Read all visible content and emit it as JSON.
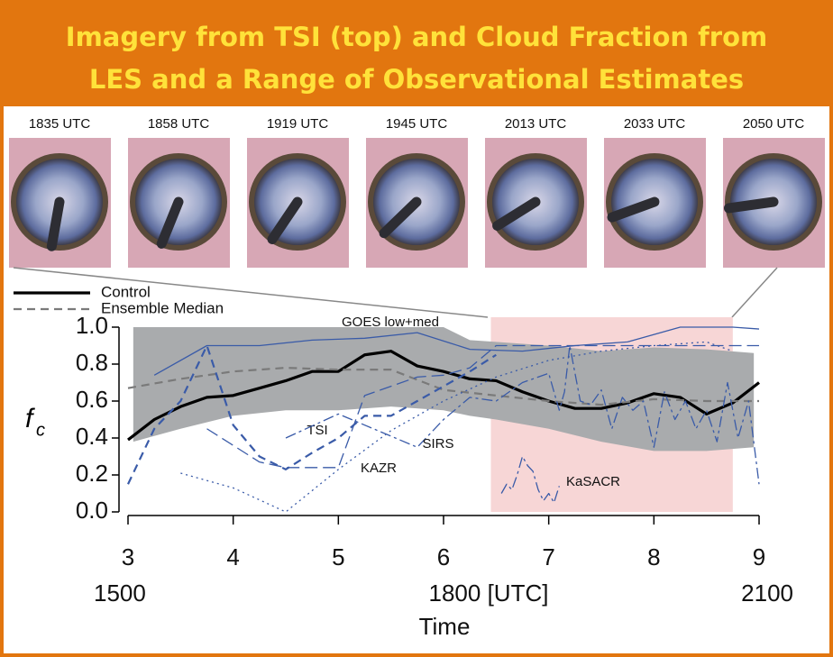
{
  "header": {
    "title_lines": [
      "Imagery from TSI (top) and Cloud Fraction from",
      "LES and a Range of Observational Estimates"
    ]
  },
  "images": {
    "labels": [
      "1835 UTC",
      "1858 UTC",
      "1919 UTC",
      "1945 UTC",
      "2013 UTC",
      "2033 UTC",
      "2050 UTC"
    ]
  },
  "chart_data": {
    "type": "line",
    "xlabel": "Time",
    "ylabel": {
      "text": "f",
      "subscript": "c"
    },
    "xlim": [
      3,
      9
    ],
    "ylim": [
      0,
      1
    ],
    "xticks": [
      3,
      4,
      5,
      6,
      7,
      8,
      9
    ],
    "xticks2": [
      {
        "value": 3,
        "label": "1500"
      },
      {
        "value": 6,
        "label": "1800 [UTC]"
      },
      {
        "value": 9,
        "label": "2100"
      }
    ],
    "yticks": [
      {
        "value": 0,
        "label": "0.0"
      },
      {
        "value": 0.2,
        "label": "0.2"
      },
      {
        "value": 0.4,
        "label": "0.4"
      },
      {
        "value": 0.6,
        "label": "0.6"
      },
      {
        "value": 0.8,
        "label": "0.8"
      },
      {
        "value": 1,
        "label": "1.0"
      }
    ],
    "shaded_region": [
      6.45,
      8.75
    ],
    "shaded_color": "#f7d6d6",
    "band": {
      "color": "#a9abad",
      "x": [
        3.05,
        3.5,
        4,
        4.5,
        5,
        5.5,
        6,
        6.25,
        6.5,
        7,
        7.5,
        8,
        8.5,
        8.95
      ],
      "upper": [
        1.0,
        1.0,
        1.0,
        1.0,
        1.0,
        1.0,
        1.0,
        0.93,
        0.92,
        0.9,
        0.87,
        0.89,
        0.88,
        0.86
      ],
      "lower": [
        0.38,
        0.45,
        0.52,
        0.55,
        0.55,
        0.57,
        0.55,
        0.52,
        0.5,
        0.45,
        0.38,
        0.33,
        0.33,
        0.35
      ]
    },
    "series": [
      {
        "name": "Control",
        "color": "#000000",
        "style": "thick",
        "legend": true,
        "x": [
          3,
          3.25,
          3.5,
          3.75,
          4,
          4.25,
          4.5,
          4.75,
          5,
          5.25,
          5.5,
          5.75,
          6,
          6.25,
          6.5,
          6.75,
          7,
          7.25,
          7.5,
          7.75,
          8,
          8.25,
          8.5,
          8.75,
          9
        ],
        "values": [
          0.39,
          0.5,
          0.57,
          0.62,
          0.63,
          0.67,
          0.71,
          0.76,
          0.76,
          0.85,
          0.87,
          0.79,
          0.76,
          0.72,
          0.71,
          0.65,
          0.6,
          0.56,
          0.56,
          0.59,
          0.64,
          0.62,
          0.53,
          0.59,
          0.7
        ]
      },
      {
        "name": "Ensemble Median",
        "color": "#7a7a7a",
        "style": "dashed",
        "legend": true,
        "x": [
          3,
          3.5,
          4,
          4.5,
          5,
          5.5,
          6,
          6.5,
          7,
          7.5,
          8,
          8.5,
          9
        ],
        "values": [
          0.67,
          0.72,
          0.76,
          0.78,
          0.77,
          0.77,
          0.66,
          0.63,
          0.6,
          0.58,
          0.61,
          0.6,
          0.6
        ]
      },
      {
        "name": "GOES low+med",
        "color": "#3a5ba8",
        "style": "solid",
        "x": [
          3.25,
          3.75,
          4.25,
          4.75,
          5.25,
          5.75,
          6.25,
          6.75,
          7.25,
          7.75,
          8.25,
          8.75,
          9
        ],
        "values": [
          0.74,
          0.9,
          0.9,
          0.93,
          0.94,
          0.97,
          0.88,
          0.87,
          0.9,
          0.92,
          1.0,
          1.0,
          0.99
        ]
      },
      {
        "name": "TSI",
        "color": "#3a5ba8",
        "style": "dashed",
        "x": [
          3,
          3.25,
          3.5,
          3.75,
          4,
          4.25,
          4.5,
          4.75,
          5,
          5.25,
          5.5,
          5.75,
          6,
          6.25,
          6.5
        ],
        "values": [
          0.15,
          0.45,
          0.6,
          0.9,
          0.47,
          0.3,
          0.23,
          0.32,
          0.4,
          0.52,
          0.52,
          0.6,
          0.68,
          0.76,
          0.85
        ]
      },
      {
        "name": "KAZR",
        "color": "#3a5ba8",
        "style": "longdash",
        "x": [
          3.75,
          4,
          4.25,
          4.5,
          5,
          5.25,
          5.5,
          5.75,
          6,
          6.25,
          6.5,
          7.25,
          8,
          9
        ],
        "values": [
          0.45,
          0.36,
          0.27,
          0.24,
          0.24,
          0.63,
          0.68,
          0.73,
          0.74,
          0.78,
          0.9,
          0.9,
          0.9,
          0.9
        ]
      },
      {
        "name": "SIRS",
        "color": "#3a5ba8",
        "style": "dashdot",
        "x": [
          4.5,
          5,
          5.5,
          5.75,
          6,
          6.25,
          6.5,
          6.75,
          7,
          7.1,
          7.15,
          7.2,
          7.3,
          7.4,
          7.5,
          7.6,
          7.7,
          7.8,
          7.9,
          8,
          8.1,
          8.2,
          8.3,
          8.4,
          8.5,
          8.6,
          8.7,
          8.8,
          8.9,
          9
        ],
        "values": [
          0.4,
          0.53,
          0.41,
          0.35,
          0.5,
          0.62,
          0.6,
          0.7,
          0.75,
          0.55,
          0.65,
          0.9,
          0.6,
          0.58,
          0.66,
          0.45,
          0.62,
          0.55,
          0.6,
          0.35,
          0.65,
          0.5,
          0.6,
          0.45,
          0.55,
          0.38,
          0.7,
          0.4,
          0.6,
          0.15
        ]
      },
      {
        "color": "#3a5ba8",
        "style": "dotted",
        "x": [
          3.5,
          4,
          4.5,
          5,
          5.5,
          6,
          6.5,
          7,
          7.5,
          8,
          8.5,
          8.75
        ],
        "values": [
          0.21,
          0.13,
          0.0,
          0.23,
          0.44,
          0.6,
          0.73,
          0.82,
          0.87,
          0.9,
          0.92,
          0.87
        ]
      },
      {
        "name": "KaSACR",
        "color": "#3a5ba8",
        "style": "dashdot",
        "x": [
          6.55,
          6.6,
          6.65,
          6.7,
          6.75,
          6.8,
          6.85,
          6.9,
          6.95,
          7.0,
          7.05,
          7.1
        ],
        "values": [
          0.1,
          0.15,
          0.12,
          0.2,
          0.3,
          0.25,
          0.22,
          0.12,
          0.06,
          0.1,
          0.05,
          0.14
        ]
      }
    ]
  }
}
